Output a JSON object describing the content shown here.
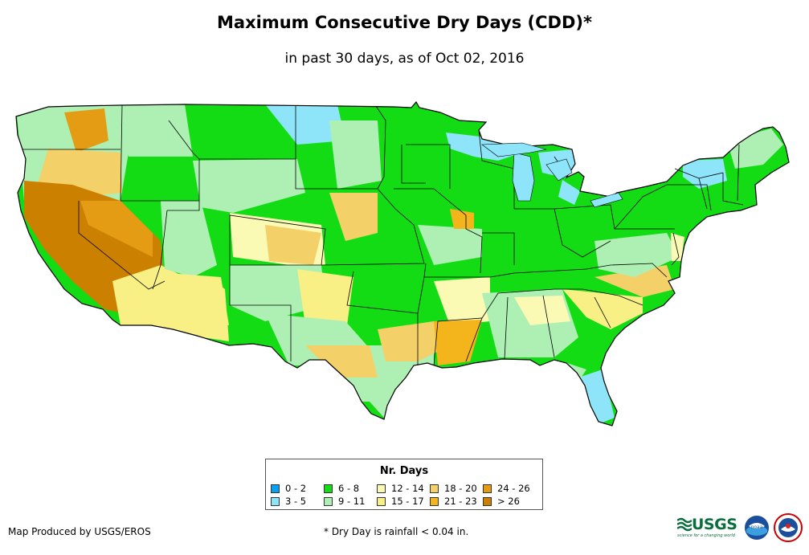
{
  "title": "Maximum Consecutive Dry Days (CDD)*",
  "subtitle": "in past 30 days, as of Oct 02, 2016",
  "legend": {
    "title": "Nr. Days",
    "items": [
      {
        "label": "0 - 2",
        "color": "#0aa0f0"
      },
      {
        "label": "3 - 5",
        "color": "#8ee4f8"
      },
      {
        "label": "6 - 8",
        "color": "#14dc14"
      },
      {
        "label": "9 - 11",
        "color": "#aef0b4"
      },
      {
        "label": "12 - 14",
        "color": "#fafab4"
      },
      {
        "label": "15 - 17",
        "color": "#f8f084"
      },
      {
        "label": "18 - 20",
        "color": "#f4d068"
      },
      {
        "label": "21 - 23",
        "color": "#f4b41c"
      },
      {
        "label": "24 - 26",
        "color": "#e49c14"
      },
      {
        "label": "> 26",
        "color": "#cc8000"
      }
    ]
  },
  "footer": {
    "credit": "Map Produced by USGS/EROS",
    "footnote": "* Dry Day is rainfall < 0.04 in."
  },
  "logos": {
    "usgs": "USGS",
    "usgs_tagline": "science for a changing world",
    "noaa": "noaa"
  },
  "icons": [
    "usgs-logo-icon",
    "noaa-logo-icon",
    "nws-logo-icon"
  ]
}
